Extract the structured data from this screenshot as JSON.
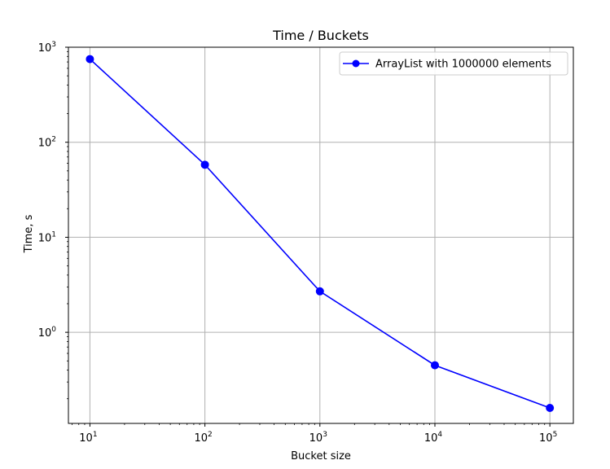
{
  "chart_data": {
    "type": "line",
    "title": "Time / Buckets",
    "xlabel": "Bucket size",
    "ylabel": "Time, s",
    "xscale": "log",
    "yscale": "log",
    "xlim": [
      6.5,
      160000
    ],
    "ylim": [
      0.11,
      1000
    ],
    "x_ticks": [
      {
        "value": 10,
        "base": "10",
        "exp": "1"
      },
      {
        "value": 100,
        "base": "10",
        "exp": "2"
      },
      {
        "value": 1000,
        "base": "10",
        "exp": "3"
      },
      {
        "value": 10000,
        "base": "10",
        "exp": "4"
      },
      {
        "value": 100000,
        "base": "10",
        "exp": "5"
      }
    ],
    "y_ticks": [
      {
        "value": 1,
        "base": "10",
        "exp": "0"
      },
      {
        "value": 10,
        "base": "10",
        "exp": "1"
      },
      {
        "value": 100,
        "base": "10",
        "exp": "2"
      },
      {
        "value": 1000,
        "base": "10",
        "exp": "3"
      }
    ],
    "grid": true,
    "legend_position": "top-right",
    "series": [
      {
        "name": "ArrayList with 1000000 elements",
        "color": "#0000ff",
        "marker": "circle",
        "x": [
          10,
          100,
          1000,
          10000,
          100000
        ],
        "y": [
          750,
          58,
          2.7,
          0.45,
          0.16
        ]
      }
    ]
  }
}
